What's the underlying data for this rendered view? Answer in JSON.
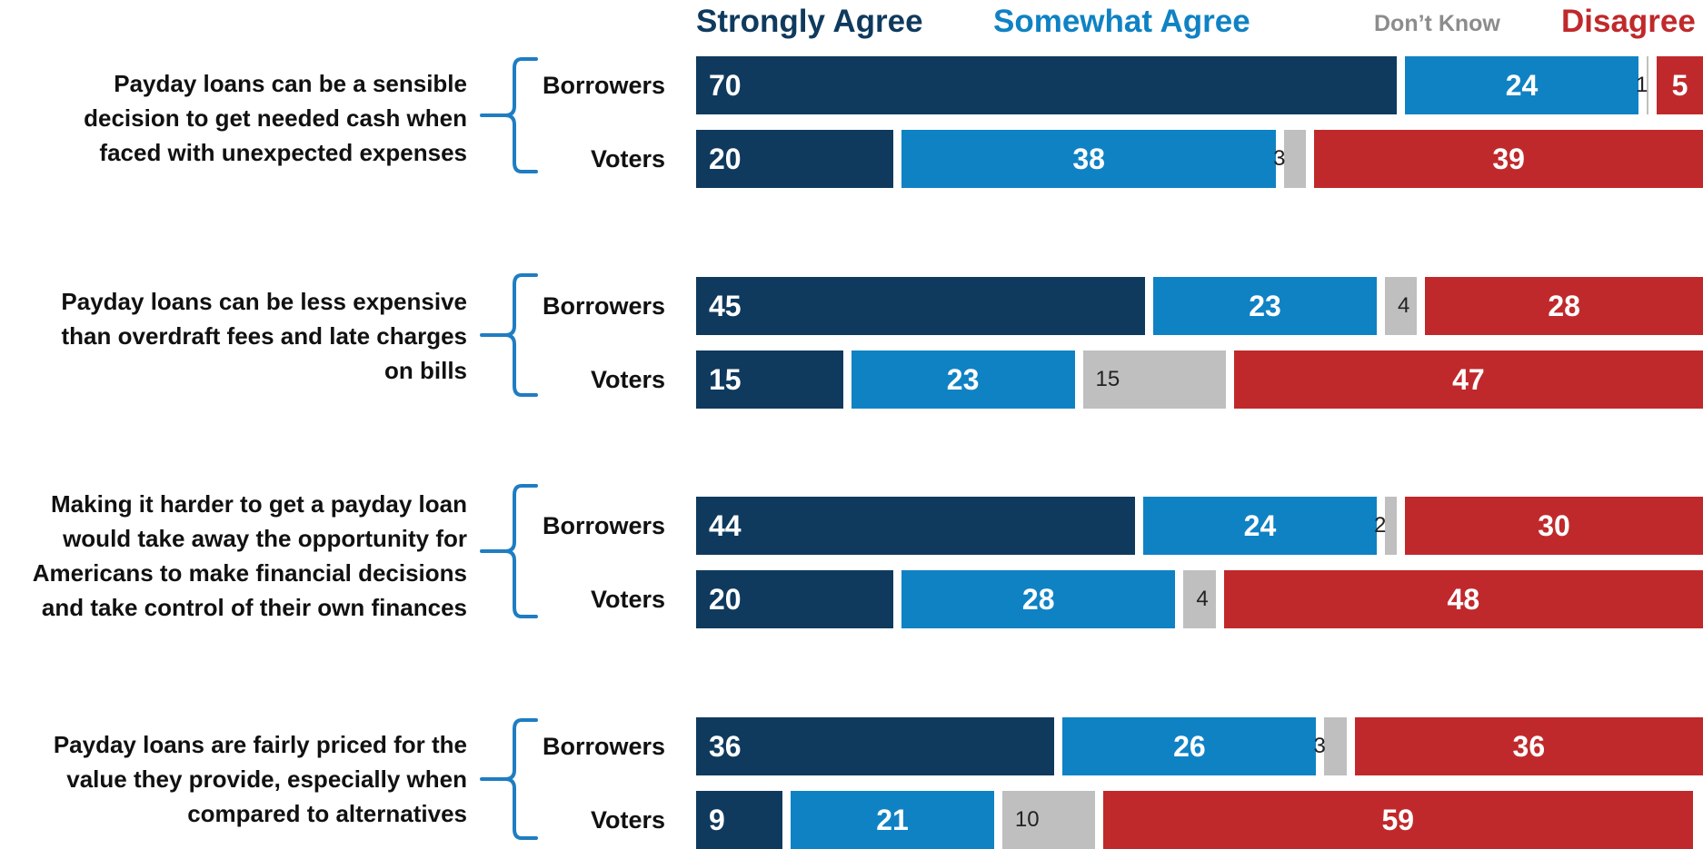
{
  "colors": {
    "strongly_agree": "#0f3a5e",
    "somewhat_agree": "#0f82c4",
    "dont_know": "#bfbfbf",
    "disagree": "#c0292b",
    "brace": "#1f7dc1"
  },
  "legend": {
    "strongly_agree": "Strongly Agree",
    "somewhat_agree": "Somewhat Agree",
    "dont_know": "Don’t Know",
    "disagree": "Disagree"
  },
  "chart_data": {
    "type": "bar",
    "orientation": "horizontal",
    "stacked": true,
    "title": "",
    "xlabel": "",
    "ylabel": "",
    "series": [
      {
        "name": "Strongly Agree",
        "color": "#0f3a5e"
      },
      {
        "name": "Somewhat Agree",
        "color": "#0f82c4"
      },
      {
        "name": "Don’t Know",
        "color": "#bfbfbf"
      },
      {
        "name": "Disagree",
        "color": "#c0292b"
      }
    ],
    "groups": [
      {
        "statement": [
          "Payday loans can be a sensible",
          "decision to get needed cash when",
          "faced with unexpected expenses"
        ],
        "rows": [
          {
            "label": "Borrowers",
            "values": [
              70,
              24,
              1,
              5
            ]
          },
          {
            "label": "Voters",
            "values": [
              20,
              38,
              3,
              39
            ]
          }
        ]
      },
      {
        "statement": [
          "Payday loans can be less expensive",
          "than overdraft fees and late charges",
          "on bills"
        ],
        "rows": [
          {
            "label": "Borrowers",
            "values": [
              45,
              23,
              4,
              28
            ]
          },
          {
            "label": "Voters",
            "values": [
              15,
              23,
              15,
              47
            ]
          }
        ]
      },
      {
        "statement": [
          "Making it harder to get a payday loan",
          "would take away the opportunity for",
          "Americans to make financial decisions",
          "and take control of their own finances"
        ],
        "rows": [
          {
            "label": "Borrowers",
            "values": [
              44,
              24,
              2,
              30
            ]
          },
          {
            "label": "Voters",
            "values": [
              20,
              28,
              4,
              48
            ]
          }
        ]
      },
      {
        "statement": [
          "Payday loans are fairly priced for the",
          "value they provide, especially when",
          "compared to alternatives"
        ],
        "rows": [
          {
            "label": "Borrowers",
            "values": [
              36,
              26,
              3,
              36
            ]
          },
          {
            "label": "Voters",
            "values": [
              9,
              21,
              10,
              59
            ]
          }
        ]
      }
    ]
  }
}
